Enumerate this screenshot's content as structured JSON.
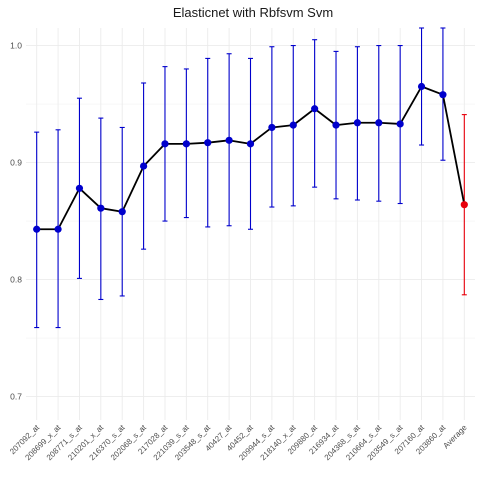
{
  "chart_data": {
    "type": "line",
    "title": "Elasticnet with Rbfsvm Svm",
    "xlabel": "",
    "ylabel": "",
    "ylim": [
      0.68,
      1.015
    ],
    "yticks": [
      0.7,
      0.8,
      0.9,
      1.0
    ],
    "ytick_labels": [
      "0.7",
      "0.8",
      "0.9",
      "1.0"
    ],
    "grid": true,
    "colors": {
      "series": "#0000cc",
      "line": "#000000",
      "average": "#e8000b",
      "grid": "#ebebeb"
    },
    "categories": [
      "207092_at",
      "208699_x_at",
      "208771_s_at",
      "210201_x_at",
      "216370_s_at",
      "202068_s_at",
      "217028_at",
      "221039_s_at",
      "203548_s_at",
      "40427_at",
      "40452_at",
      "209944_s_at",
      "218140_x_at",
      "209880_at",
      "216934_at",
      "204368_s_at",
      "210664_s_at",
      "203549_s_at",
      "207160_at",
      "203860_at",
      "Average"
    ],
    "values": [
      0.843,
      0.843,
      0.878,
      0.861,
      0.858,
      0.897,
      0.916,
      0.916,
      0.917,
      0.919,
      0.916,
      0.93,
      0.932,
      0.946,
      0.932,
      0.934,
      0.934,
      0.933,
      0.965,
      0.958,
      0.864
    ],
    "lower": [
      0.759,
      0.759,
      0.801,
      0.783,
      0.786,
      0.826,
      0.85,
      0.853,
      0.845,
      0.846,
      0.843,
      0.862,
      0.863,
      0.879,
      0.869,
      0.868,
      0.867,
      0.865,
      0.915,
      0.902,
      0.787
    ],
    "upper": [
      0.926,
      0.928,
      0.955,
      0.938,
      0.93,
      0.968,
      0.982,
      0.98,
      0.989,
      0.993,
      0.989,
      0.999,
      1.0,
      1.005,
      0.995,
      0.999,
      1.0,
      1.0,
      1.015,
      1.015,
      0.941
    ]
  }
}
